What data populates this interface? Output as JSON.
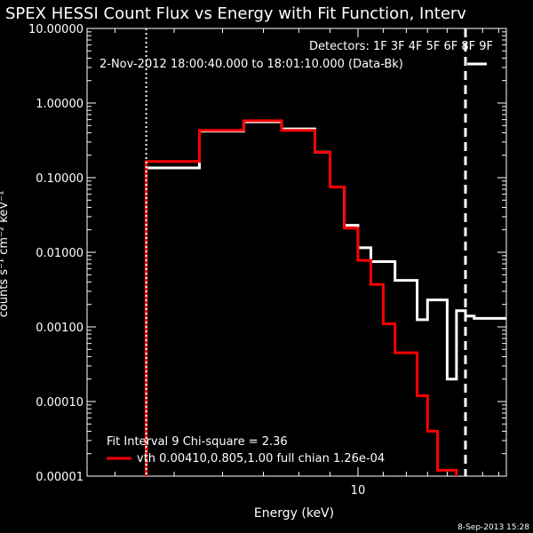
{
  "chart_data": {
    "type": "line",
    "title": "SPEX HESSI Count Flux vs Energy with Fit Function, Interv",
    "xlabel": "Energy (keV)",
    "ylabel": "counts s⁻¹ cm⁻² keV⁻¹",
    "x_scale": "log",
    "y_scale": "log",
    "xlim": [
      3.6,
      17.5
    ],
    "ylim": [
      1e-05,
      10
    ],
    "x_tick_labels": [
      {
        "value": 10,
        "label": "10"
      }
    ],
    "y_tick_labels": [
      {
        "value": 10,
        "label": "10.00000"
      },
      {
        "value": 1,
        "label": "1.00000"
      },
      {
        "value": 0.1,
        "label": "0.10000"
      },
      {
        "value": 0.01,
        "label": "0.01000"
      },
      {
        "value": 0.001,
        "label": "0.00100"
      },
      {
        "value": 0.0001,
        "label": "0.00010"
      },
      {
        "value": 1e-05,
        "label": "0.00001"
      }
    ],
    "legend_top": {
      "line1": "Detectors: 1F 3F 4F 5F 6F 8F 9F",
      "line2": "2-Nov-2012 18:00:40.000 to 18:01:10.000 (Data-Bk)",
      "color": "#ffffff"
    },
    "legend_bottom": {
      "line1": "Fit Interval 9   Chi-square = 2.36",
      "line2": "vth 0.00410,0.805,1.00  full chian 1.26e-04",
      "color": "#ff0000"
    },
    "vertical_lines": [
      {
        "x": 4.5,
        "style": "dotted",
        "color": "#ffffff"
      },
      {
        "x": 15.0,
        "style": "dashed",
        "color": "#ffffff"
      }
    ],
    "series": [
      {
        "color": "#ffffff",
        "bins": [
          {
            "x0": 4.5,
            "x1": 5.5,
            "y": 0.135
          },
          {
            "x0": 5.5,
            "x1": 6.5,
            "y": 0.42
          },
          {
            "x0": 6.5,
            "x1": 7.5,
            "y": 0.56
          },
          {
            "x0": 7.5,
            "x1": 8.5,
            "y": 0.45
          },
          {
            "x0": 8.5,
            "x1": 9.0,
            "y": 0.22
          },
          {
            "x0": 9.0,
            "x1": 9.5,
            "y": 0.075
          },
          {
            "x0": 9.5,
            "x1": 10.0,
            "y": 0.023
          },
          {
            "x0": 10.0,
            "x1": 10.5,
            "y": 0.0115
          },
          {
            "x0": 10.5,
            "x1": 11.5,
            "y": 0.0075
          },
          {
            "x0": 11.5,
            "x1": 12.5,
            "y": 0.0042
          },
          {
            "x0": 12.5,
            "x1": 13.0,
            "y": 0.00125
          },
          {
            "x0": 13.0,
            "x1": 14.0,
            "y": 0.0023
          },
          {
            "x0": 14.0,
            "x1": 14.5,
            "y": 0.0002
          },
          {
            "x0": 14.5,
            "x1": 15.0,
            "y": 0.00165
          },
          {
            "x0": 15.0,
            "x1": 15.5,
            "y": 0.0014
          },
          {
            "x0": 15.5,
            "x1": 17.5,
            "y": 0.0013
          }
        ]
      },
      {
        "color": "#ff0000",
        "bins": [
          {
            "x0": 4.5,
            "x1": 5.5,
            "y": 0.165
          },
          {
            "x0": 5.5,
            "x1": 6.5,
            "y": 0.43
          },
          {
            "x0": 6.5,
            "x1": 7.5,
            "y": 0.58
          },
          {
            "x0": 7.5,
            "x1": 8.5,
            "y": 0.43
          },
          {
            "x0": 8.5,
            "x1": 9.0,
            "y": 0.22
          },
          {
            "x0": 9.0,
            "x1": 9.5,
            "y": 0.075
          },
          {
            "x0": 9.5,
            "x1": 10.0,
            "y": 0.021
          },
          {
            "x0": 10.0,
            "x1": 10.5,
            "y": 0.0078
          },
          {
            "x0": 10.5,
            "x1": 11.0,
            "y": 0.0037
          },
          {
            "x0": 11.0,
            "x1": 11.5,
            "y": 0.0011
          },
          {
            "x0": 11.5,
            "x1": 12.5,
            "y": 0.00045
          },
          {
            "x0": 12.5,
            "x1": 13.0,
            "y": 0.00012
          },
          {
            "x0": 13.0,
            "x1": 13.5,
            "y": 4e-05
          },
          {
            "x0": 13.5,
            "x1": 14.5,
            "y": 1.2e-05
          }
        ]
      }
    ],
    "timestamp": "8-Sep-2013 15:28"
  }
}
